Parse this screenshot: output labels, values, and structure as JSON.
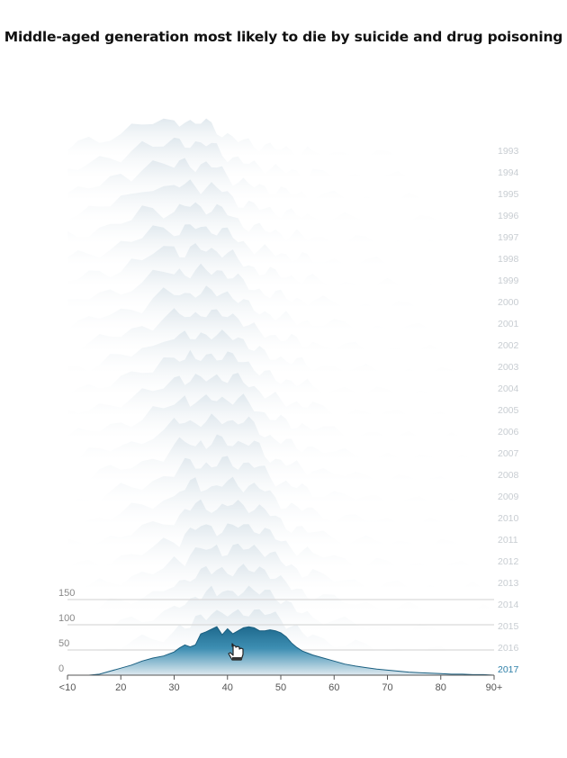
{
  "title": "Middle-aged generation most likely to die by suicide and drug poisoning",
  "colors": {
    "accent": "#2d7fa8",
    "accent_dark": "#1a5f80",
    "faded_fill": "#e9eef2",
    "axis": "#555555",
    "grid": "#d9d9d9"
  },
  "chart_data": {
    "type": "area",
    "subtype": "ridgeline",
    "title": "Middle-aged generation most likely to die by suicide and drug poisoning",
    "x_tick_labels": [
      "<10",
      "20",
      "30",
      "40",
      "50",
      "60",
      "70",
      "80",
      "90+"
    ],
    "x_ticks": [
      10,
      20,
      30,
      40,
      50,
      60,
      70,
      80,
      90
    ],
    "xlim": [
      10,
      90
    ],
    "y_ticks": [
      0,
      50,
      100,
      150
    ],
    "ylim": [
      0,
      150
    ],
    "years": [
      "1993",
      "1994",
      "1995",
      "1996",
      "1997",
      "1998",
      "1999",
      "2000",
      "2001",
      "2002",
      "2003",
      "2004",
      "2005",
      "2006",
      "2007",
      "2008",
      "2009",
      "2010",
      "2011",
      "2012",
      "2013",
      "2014",
      "2015",
      "2016",
      "2017"
    ],
    "highlighted_year": "2017",
    "highlighted_series": {
      "year": "2017",
      "age": [
        10,
        12,
        14,
        16,
        18,
        20,
        22,
        24,
        26,
        28,
        30,
        31,
        32,
        33,
        34,
        35,
        36,
        37,
        38,
        39,
        40,
        41,
        42,
        43,
        44,
        45,
        46,
        47,
        48,
        49,
        50,
        51,
        52,
        53,
        54,
        55,
        56,
        58,
        60,
        62,
        64,
        66,
        68,
        70,
        72,
        74,
        76,
        78,
        80,
        82,
        84,
        86,
        88,
        90
      ],
      "deaths": [
        0,
        0,
        0,
        2,
        8,
        14,
        20,
        28,
        34,
        38,
        46,
        54,
        60,
        56,
        60,
        82,
        86,
        91,
        96,
        80,
        92,
        82,
        88,
        94,
        96,
        94,
        88,
        88,
        90,
        88,
        84,
        76,
        64,
        55,
        48,
        44,
        40,
        34,
        28,
        22,
        18,
        15,
        12,
        10,
        8,
        6,
        5,
        4,
        3,
        2,
        2,
        1,
        1,
        0
      ]
    }
  },
  "cursor": "hand-pointer-icon"
}
